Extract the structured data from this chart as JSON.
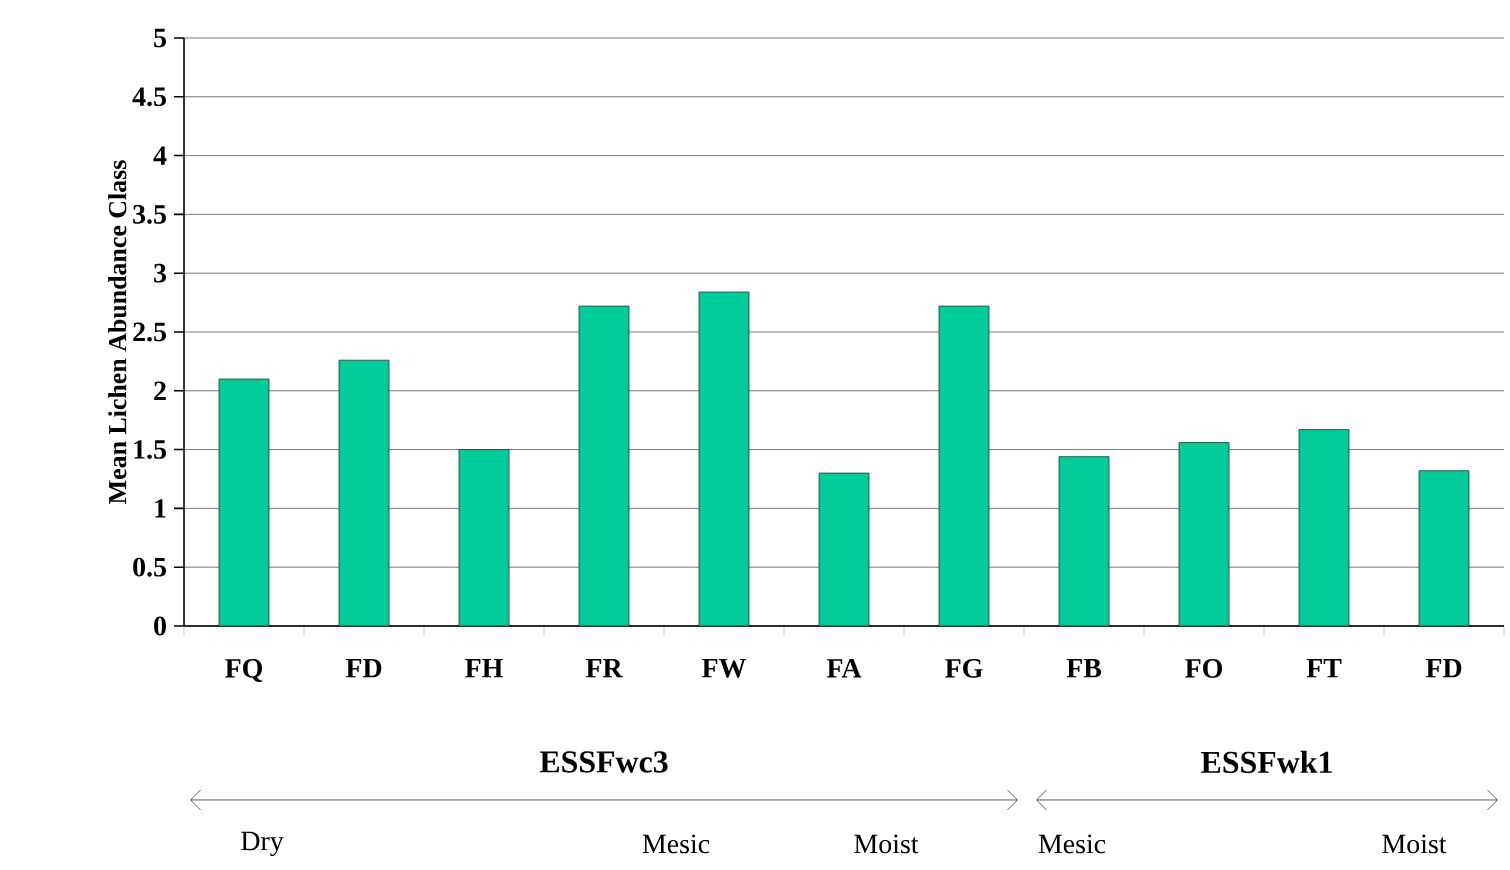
{
  "chart_data": {
    "type": "bar",
    "ylabel": "Mean Lichen Abundance Class",
    "categories": [
      "FQ",
      "FD",
      "FH",
      "FR",
      "FW",
      "FA",
      "FG",
      "FB",
      "FO",
      "FT",
      "FD"
    ],
    "values": [
      2.1,
      2.26,
      1.5,
      2.72,
      2.84,
      1.3,
      2.72,
      1.44,
      1.56,
      1.67,
      1.32
    ],
    "color": "#00cc99",
    "ylim": [
      0,
      5
    ],
    "yticks": [
      0,
      0.5,
      1,
      1.5,
      2,
      2.5,
      3,
      3.5,
      4,
      4.5,
      5
    ],
    "grid": "y",
    "annotations": [
      "ESSFwc3",
      "ESSFwk1",
      "Dry",
      "Mesic",
      "Moist",
      "Mesic",
      "Moist"
    ]
  }
}
